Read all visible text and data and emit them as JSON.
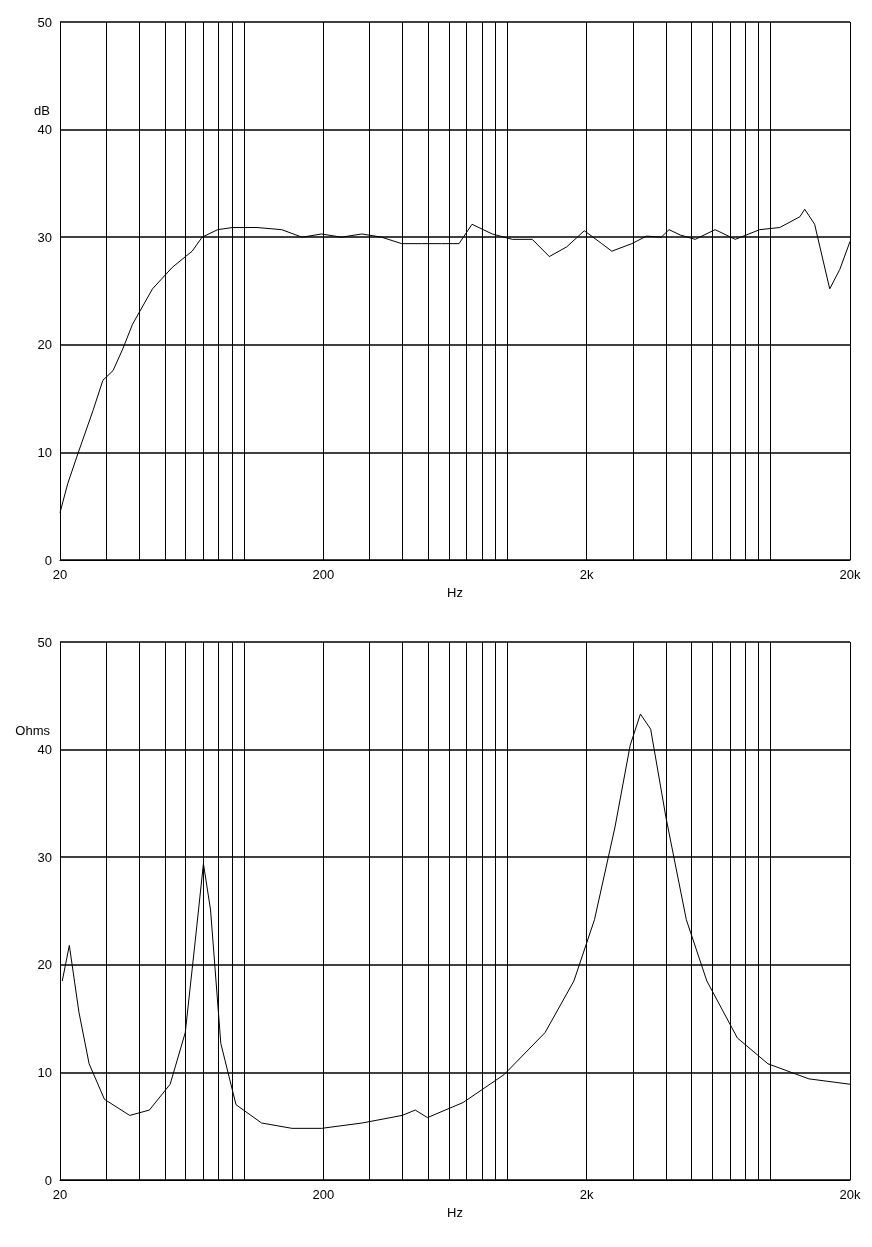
{
  "chart_data": [
    {
      "type": "line",
      "xlabel": "Hz",
      "ylabel": "dB",
      "log": "x",
      "grid": true,
      "marker": "none",
      "line_style": "solid",
      "xlim": [
        20,
        20000
      ],
      "ylim": [
        0,
        50
      ],
      "yticks": [
        0,
        10,
        20,
        30,
        40,
        50
      ],
      "xticks": [
        {
          "value": 20,
          "label": "20"
        },
        {
          "value": 30,
          "label": null
        },
        {
          "value": 40,
          "label": null
        },
        {
          "value": 50,
          "label": null
        },
        {
          "value": 60,
          "label": null
        },
        {
          "value": 70,
          "label": null
        },
        {
          "value": 80,
          "label": null
        },
        {
          "value": 90,
          "label": null
        },
        {
          "value": 100,
          "label": null
        },
        {
          "value": 200,
          "label": "200"
        },
        {
          "value": 300,
          "label": null
        },
        {
          "value": 400,
          "label": null
        },
        {
          "value": 500,
          "label": null
        },
        {
          "value": 600,
          "label": null
        },
        {
          "value": 700,
          "label": null
        },
        {
          "value": 800,
          "label": null
        },
        {
          "value": 900,
          "label": null
        },
        {
          "value": 1000,
          "label": null
        },
        {
          "value": 2000,
          "label": "2k"
        },
        {
          "value": 3000,
          "label": null
        },
        {
          "value": 4000,
          "label": null
        },
        {
          "value": 5000,
          "label": null
        },
        {
          "value": 6000,
          "label": null
        },
        {
          "value": 7000,
          "label": null
        },
        {
          "value": 8000,
          "label": null
        },
        {
          "value": 9000,
          "label": null
        },
        {
          "value": 10000,
          "label": null
        },
        {
          "value": 20000,
          "label": "20k"
        }
      ],
      "x": [
        20,
        21.4,
        23.4,
        26.7,
        29.1,
        31.8,
        34.6,
        37.7,
        44.9,
        53.4,
        63.5,
        69.3,
        79.4,
        90.4,
        112,
        139,
        166,
        197,
        234,
        280,
        333,
        397,
        472,
        562,
        655,
        734,
        876,
        1044,
        1243,
        1443,
        1680,
        1959,
        2283,
        2491,
        2968,
        3376,
        3840,
        4110,
        4540,
        5165,
        6150,
        7330,
        9080,
        10820,
        12900,
        13460,
        14680,
        16750,
        18290,
        20000
      ],
      "series": [
        {
          "color": "#000000",
          "values": [
            4.4,
            7.1,
            9.9,
            13.9,
            16.7,
            17.6,
            19.6,
            21.9,
            25.2,
            27.2,
            28.7,
            30.0,
            30.7,
            30.9,
            30.9,
            30.7,
            30.0,
            30.3,
            30.0,
            30.3,
            30.0,
            29.4,
            29.4,
            29.4,
            29.4,
            31.2,
            30.3,
            29.8,
            29.8,
            28.2,
            29.1,
            30.6,
            29.4,
            28.7,
            29.4,
            30.1,
            30.0,
            30.7,
            30.2,
            29.8,
            30.7,
            29.8,
            30.7,
            30.9,
            31.9,
            32.6,
            31.2,
            25.2,
            27.0,
            29.6
          ]
        }
      ]
    },
    {
      "type": "line",
      "xlabel": "Hz",
      "ylabel": "Ohms",
      "log": "x",
      "grid": true,
      "marker": "none",
      "line_style": "solid",
      "xlim": [
        20,
        20000
      ],
      "ylim": [
        0,
        50
      ],
      "yticks": [
        0,
        10,
        20,
        30,
        40,
        50
      ],
      "xticks": [
        {
          "value": 20,
          "label": "20"
        },
        {
          "value": 30,
          "label": null
        },
        {
          "value": 40,
          "label": null
        },
        {
          "value": 50,
          "label": null
        },
        {
          "value": 60,
          "label": null
        },
        {
          "value": 70,
          "label": null
        },
        {
          "value": 80,
          "label": null
        },
        {
          "value": 90,
          "label": null
        },
        {
          "value": 100,
          "label": null
        },
        {
          "value": 200,
          "label": "200"
        },
        {
          "value": 300,
          "label": null
        },
        {
          "value": 400,
          "label": null
        },
        {
          "value": 500,
          "label": null
        },
        {
          "value": 600,
          "label": null
        },
        {
          "value": 700,
          "label": null
        },
        {
          "value": 800,
          "label": null
        },
        {
          "value": 900,
          "label": null
        },
        {
          "value": 1000,
          "label": null
        },
        {
          "value": 2000,
          "label": "2k"
        },
        {
          "value": 3000,
          "label": null
        },
        {
          "value": 4000,
          "label": null
        },
        {
          "value": 5000,
          "label": null
        },
        {
          "value": 6000,
          "label": null
        },
        {
          "value": 7000,
          "label": null
        },
        {
          "value": 8000,
          "label": null
        },
        {
          "value": 9000,
          "label": null
        },
        {
          "value": 10000,
          "label": null
        },
        {
          "value": 20000,
          "label": "20k"
        }
      ],
      "x": [
        20.4,
        21.7,
        23.6,
        25.8,
        29.5,
        36.8,
        43.7,
        52.4,
        59.8,
        65.3,
        70.1,
        74.6,
        81.6,
        93.2,
        116.5,
        152,
        197,
        281,
        398,
        447,
        497,
        679,
        972,
        1390,
        1789,
        2142,
        2562,
        2926,
        3200,
        3500,
        4000,
        4780,
        5720,
        7470,
        9760,
        13960,
        20000
      ],
      "series": [
        {
          "color": "#000000",
          "values": [
            18.5,
            21.8,
            15.6,
            10.8,
            7.5,
            6.0,
            6.5,
            8.9,
            13.7,
            22.3,
            29.4,
            25.1,
            12.7,
            7.0,
            5.3,
            4.8,
            4.8,
            5.3,
            6.0,
            6.5,
            5.8,
            7.2,
            9.8,
            13.7,
            18.5,
            24.2,
            32.8,
            40.4,
            43.3,
            41.9,
            33.7,
            24.2,
            18.5,
            13.2,
            10.8,
            9.4,
            8.9
          ]
        }
      ]
    }
  ]
}
